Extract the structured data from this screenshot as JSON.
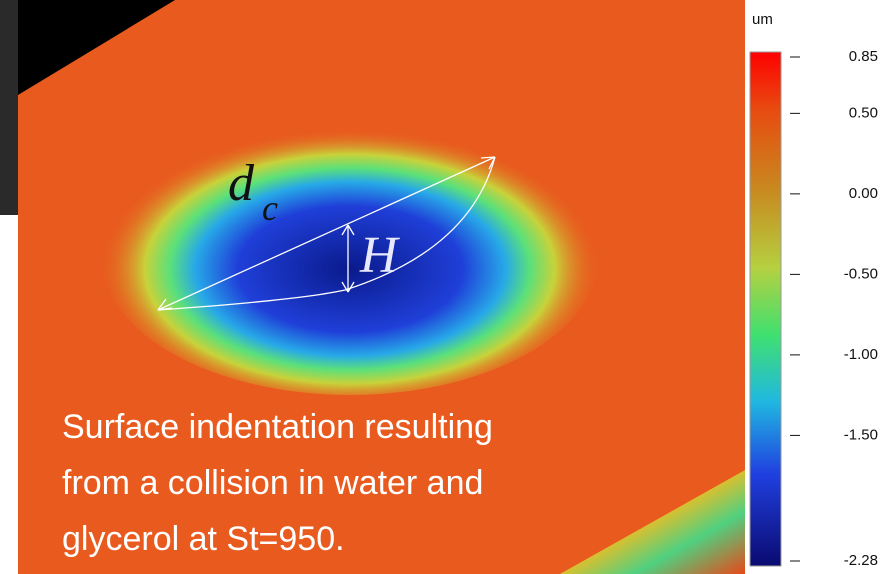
{
  "colorbar": {
    "unit": "um",
    "range": [
      -2.28,
      0.85
    ],
    "ticks": [
      {
        "value": 0.85,
        "label": "0.85"
      },
      {
        "value": 0.5,
        "label": "0.50"
      },
      {
        "value": 0,
        "label": "0.00"
      },
      {
        "value": -0.5,
        "label": "-0.50"
      },
      {
        "value": -1,
        "label": "-1.00"
      },
      {
        "value": -1.5,
        "label": "-1.50"
      },
      {
        "value": -2.28,
        "label": "-2.28"
      }
    ]
  },
  "annotations": {
    "diameter": "d",
    "diameter_subscript": "c",
    "depth": "H"
  },
  "caption": [
    "Surface indentation resulting",
    "from a collision in water and",
    "glycerol at St=950."
  ]
}
